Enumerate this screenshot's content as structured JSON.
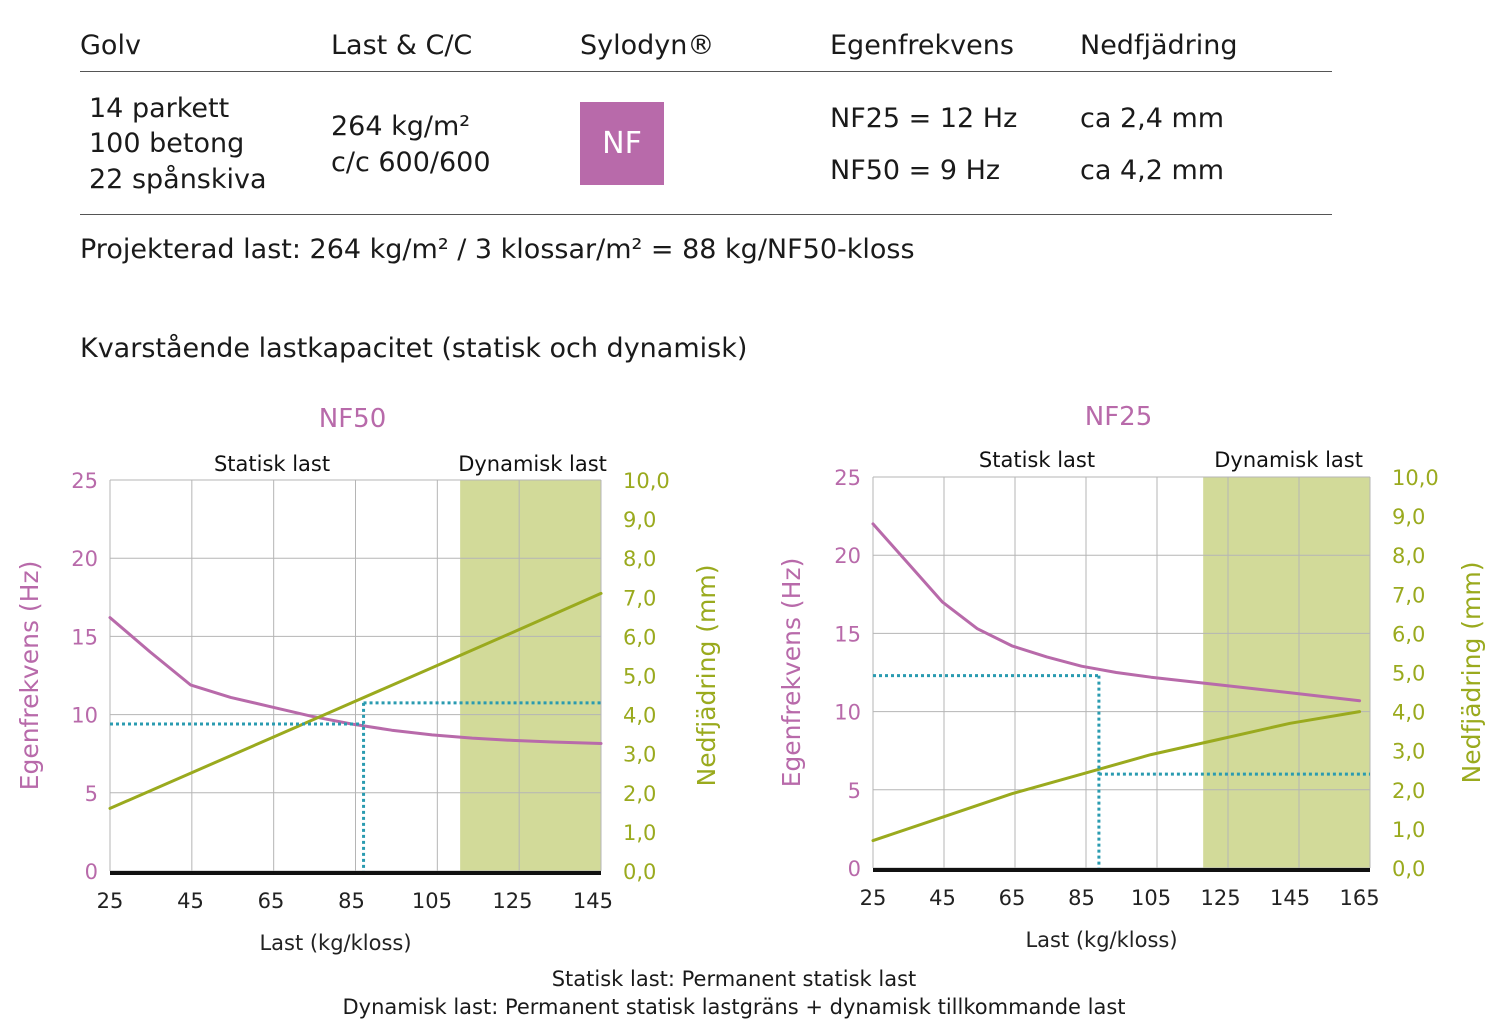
{
  "table": {
    "headers": [
      "Golv",
      "Last & C/C",
      "Sylodyn®",
      "Egenfrekvens",
      "Nedfjädring"
    ],
    "golv": [
      "14 parkett",
      "100 betong",
      "22 spånskiva"
    ],
    "last": "264 kg/m²",
    "cc": "c/c 600/600",
    "sylodyn_badge": "NF",
    "egenfrekvens": [
      "NF25 = 12 Hz",
      "NF50 = 9 Hz"
    ],
    "nedfjadring": [
      "ca 2,4 mm",
      "ca 4,2 mm"
    ]
  },
  "formula": "Projekterad last: 264 kg/m² / 3 klossar/m² = 88 kg/NF50-kloss",
  "subtitle": "Kvarstående lastkapacitet (statisk och dynamisk)",
  "colors": {
    "purple": "#b86aaa",
    "green": "#9aaa1e",
    "band": "#d2da99",
    "teal": "#2a9bb0"
  },
  "chart_data": [
    {
      "type": "line",
      "title": "NF50",
      "region_labels": [
        "Statisk last",
        "Dynamisk last"
      ],
      "dynamic_region_x": [
        112,
        147
      ],
      "xlabel": "Last (kg/kloss)",
      "ylabel_left": "Egenfrekvens (Hz)",
      "ylabel_right": "Nedfjädring (mm)",
      "xlim": [
        25,
        147
      ],
      "xticks": [
        25,
        45,
        65,
        85,
        105,
        125,
        145
      ],
      "ylim_left": [
        0,
        25
      ],
      "yticks_left": [
        0,
        5,
        10,
        15,
        20,
        25
      ],
      "ylim_right": [
        0,
        10
      ],
      "yticks_right": [
        "0,0",
        "1,0",
        "2,0",
        "3,0",
        "4,0",
        "5,0",
        "6,0",
        "7,0",
        "8,0",
        "9,0",
        "10,0"
      ],
      "series": [
        {
          "axis": "left",
          "color": "purple",
          "x": [
            25,
            35,
            45,
            55,
            65,
            75,
            85,
            95,
            105,
            115,
            125,
            135,
            147
          ],
          "y": [
            16.2,
            14.0,
            11.9,
            11.1,
            10.5,
            9.9,
            9.4,
            9.0,
            8.7,
            8.5,
            8.35,
            8.25,
            8.15
          ]
        },
        {
          "axis": "right",
          "color": "green",
          "x": [
            25,
            65,
            85,
            105,
            125,
            147
          ],
          "y": [
            1.6,
            3.4,
            4.3,
            5.2,
            6.1,
            7.1
          ]
        }
      ],
      "guides": {
        "load": 88,
        "frequency": 9.4,
        "deflection": 4.3
      }
    },
    {
      "type": "line",
      "title": "NF25",
      "region_labels": [
        "Statisk last",
        "Dynamisk last"
      ],
      "dynamic_region_x": [
        120,
        168
      ],
      "xlabel": "Last (kg/kloss)",
      "ylabel_left": "Egenfrekvens (Hz)",
      "ylabel_right": "Nedfjädring (mm)",
      "xlim": [
        25,
        168
      ],
      "xticks": [
        25,
        45,
        65,
        85,
        105,
        125,
        145,
        165
      ],
      "ylim_left": [
        0,
        25
      ],
      "yticks_left": [
        0,
        5,
        10,
        15,
        20,
        25
      ],
      "ylim_right": [
        0,
        10
      ],
      "yticks_right": [
        "0,0",
        "1,0",
        "2,0",
        "3,0",
        "4,0",
        "5,0",
        "6,0",
        "7,0",
        "8,0",
        "9,0",
        "10,0"
      ],
      "series": [
        {
          "axis": "left",
          "color": "purple",
          "x": [
            25,
            35,
            45,
            55,
            65,
            75,
            85,
            95,
            105,
            115,
            125,
            135,
            145,
            155,
            165
          ],
          "y": [
            22.0,
            19.5,
            17.0,
            15.3,
            14.2,
            13.5,
            12.9,
            12.5,
            12.2,
            11.95,
            11.7,
            11.45,
            11.2,
            10.95,
            10.7
          ]
        },
        {
          "axis": "right",
          "color": "green",
          "x": [
            25,
            45,
            65,
            85,
            105,
            125,
            145,
            165
          ],
          "y": [
            0.7,
            1.3,
            1.9,
            2.4,
            2.9,
            3.3,
            3.7,
            4.0
          ]
        }
      ],
      "guides": {
        "load": 90,
        "frequency": 12.3,
        "deflection": 2.4
      }
    }
  ],
  "footnotes": [
    "Statisk last: Permanent statisk last",
    "Dynamisk last: Permanent statisk lastgräns + dynamisk tillkommande last"
  ]
}
